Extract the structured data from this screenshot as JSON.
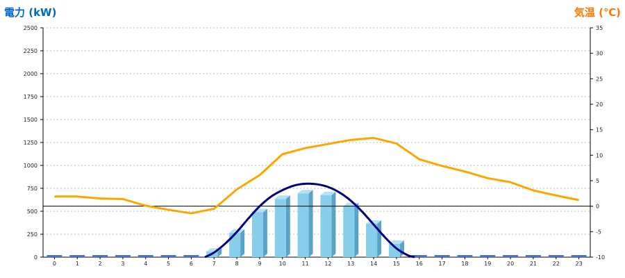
{
  "chart_data": {
    "type": "bar",
    "title": "",
    "categories": [
      "0",
      "1",
      "2",
      "3",
      "4",
      "5",
      "6",
      "7",
      "8",
      "9",
      "10",
      "11",
      "12",
      "13",
      "14",
      "15",
      "16",
      "17",
      "18",
      "19",
      "20",
      "21",
      "22",
      "23"
    ],
    "left_axis": {
      "label": "電力 (kW)",
      "range": [
        0,
        2500
      ],
      "ticks": [
        "0",
        "250",
        "500",
        "750",
        "1000",
        "1250",
        "1500",
        "1750",
        "2000",
        "2250",
        "2500"
      ]
    },
    "right_axis": {
      "label": "気温 (℃)",
      "range": [
        -10,
        35
      ],
      "ticks": [
        "-10",
        "-5",
        "0",
        "5",
        "10",
        "15",
        "20",
        "25",
        "30",
        "35"
      ]
    },
    "grid": true,
    "series": [
      {
        "kind": "bar",
        "axis": "left",
        "color": "#87CEEB",
        "values": [
          0,
          0,
          0,
          0,
          0,
          0,
          0,
          60,
          265,
          490,
          635,
          695,
          675,
          555,
          365,
          145,
          0,
          0,
          0,
          0,
          0,
          0,
          0,
          0
        ]
      },
      {
        "kind": "curve",
        "axis": "left",
        "color": "#000080",
        "x": [
          6.6,
          7,
          7.5,
          8,
          8.5,
          9,
          9.5,
          10,
          10.5,
          11,
          11.5,
          12,
          12.5,
          13,
          13.5,
          14,
          14.5,
          15,
          15.5,
          15.8
        ],
        "values": [
          0,
          50,
          150,
          275,
          420,
          555,
          660,
          730,
          780,
          800,
          795,
          765,
          705,
          615,
          495,
          355,
          215,
          95,
          20,
          0
        ]
      },
      {
        "kind": "line",
        "axis": "right",
        "color": "#FFA500",
        "values": [
          1.9,
          1.9,
          1.5,
          1.4,
          0.1,
          -0.7,
          -1.4,
          -0.5,
          3.3,
          6.1,
          10.2,
          11.4,
          12.2,
          13.0,
          13.4,
          12.3,
          9.2,
          7.9,
          6.8,
          5.5,
          4.7,
          3.1,
          2.1,
          1.2
        ]
      }
    ],
    "colors": {
      "left_title": "#0066CC",
      "right_title": "#FF7700",
      "zero_line": "#000000",
      "grid": "#BBBBBB",
      "bar_side": "#5AA3C6",
      "bar_top": "#B5E2F3",
      "empty_bar": "#4A6FD0"
    }
  }
}
